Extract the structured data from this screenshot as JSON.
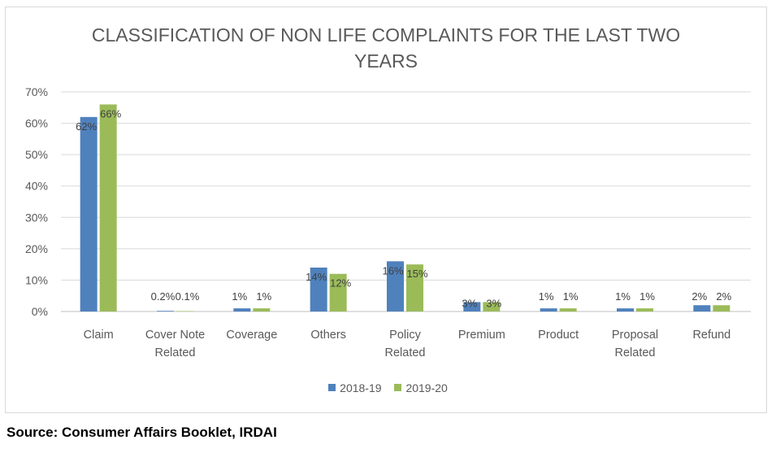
{
  "chart_data": {
    "type": "bar",
    "title_line1": "CLASSIFICATION OF NON LIFE COMPLAINTS FOR THE LAST TWO",
    "title_line2": "YEARS",
    "categories": [
      [
        "Claim"
      ],
      [
        "Cover Note",
        "Related"
      ],
      [
        "Coverage"
      ],
      [
        "Others"
      ],
      [
        "Policy",
        "Related"
      ],
      [
        "Premium"
      ],
      [
        "Product"
      ],
      [
        "Proposal",
        "Related"
      ],
      [
        "Refund"
      ]
    ],
    "series": [
      {
        "name": "2018-19",
        "color": "#4f81bd",
        "values": [
          62,
          0.2,
          1,
          14,
          16,
          3,
          1,
          1,
          2
        ],
        "labels": [
          "62%",
          "0.2%",
          "1%",
          "14%",
          "16%",
          "3%",
          "1%",
          "1%",
          "2%"
        ]
      },
      {
        "name": "2019-20",
        "color": "#9bbb59",
        "values": [
          66,
          0.1,
          1,
          12,
          15,
          3,
          1,
          1,
          2
        ],
        "labels": [
          "66%",
          "0.1%",
          "1%",
          "12%",
          "15%",
          "3%",
          "1%",
          "1%",
          "2%"
        ]
      }
    ],
    "yticks": [
      "0%",
      "10%",
      "20%",
      "30%",
      "40%",
      "50%",
      "60%",
      "70%"
    ],
    "ylim": [
      0,
      70
    ],
    "grid": true,
    "legend": "bottom-center"
  },
  "source_text": "Source: Consumer Affairs Booklet, IRDAI"
}
